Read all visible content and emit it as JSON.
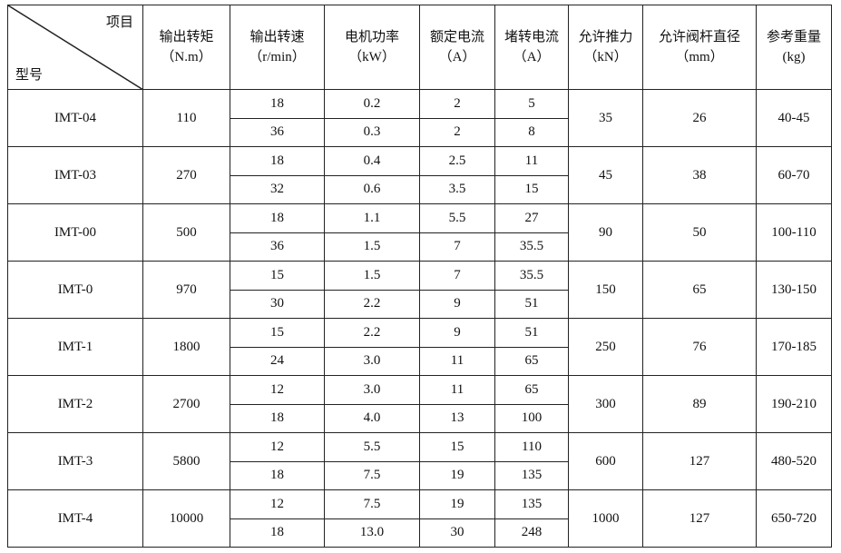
{
  "table": {
    "header": {
      "corner_top": "项目",
      "corner_bottom": "型号",
      "columns": [
        {
          "name": "输出转矩",
          "unit": "（N.m）"
        },
        {
          "name": "输出转速",
          "unit": "（r/min）"
        },
        {
          "name": "电机功率",
          "unit": "（kW）"
        },
        {
          "name": "额定电流",
          "unit": "（A）"
        },
        {
          "name": "堵转电流",
          "unit": "（A）"
        },
        {
          "name": "允许推力",
          "unit": "（kN）"
        },
        {
          "name": "允许阀杆直径",
          "unit": "（mm）"
        },
        {
          "name": "参考重量",
          "unit": "(kg)"
        }
      ]
    },
    "rows": [
      {
        "model": "IMT-04",
        "torque": "110",
        "speeds": [
          {
            "speed": "18",
            "power": "0.2",
            "rated": "2",
            "stall": "5"
          },
          {
            "speed": "36",
            "power": "0.3",
            "rated": "2",
            "stall": "8"
          }
        ],
        "thrust": "35",
        "stem": "26",
        "weight": "40-45"
      },
      {
        "model": "IMT-03",
        "torque": "270",
        "speeds": [
          {
            "speed": "18",
            "power": "0.4",
            "rated": "2.5",
            "stall": "11"
          },
          {
            "speed": "32",
            "power": "0.6",
            "rated": "3.5",
            "stall": "15"
          }
        ],
        "thrust": "45",
        "stem": "38",
        "weight": "60-70"
      },
      {
        "model": "IMT-00",
        "torque": "500",
        "speeds": [
          {
            "speed": "18",
            "power": "1.1",
            "rated": "5.5",
            "stall": "27"
          },
          {
            "speed": "36",
            "power": "1.5",
            "rated": "7",
            "stall": "35.5"
          }
        ],
        "thrust": "90",
        "stem": "50",
        "weight": "100-110"
      },
      {
        "model": "IMT-0",
        "torque": "970",
        "speeds": [
          {
            "speed": "15",
            "power": "1.5",
            "rated": "7",
            "stall": "35.5"
          },
          {
            "speed": "30",
            "power": "2.2",
            "rated": "9",
            "stall": "51"
          }
        ],
        "thrust": "150",
        "stem": "65",
        "weight": "130-150"
      },
      {
        "model": "IMT-1",
        "torque": "1800",
        "speeds": [
          {
            "speed": "15",
            "power": "2.2",
            "rated": "9",
            "stall": "51"
          },
          {
            "speed": "24",
            "power": "3.0",
            "rated": "11",
            "stall": "65"
          }
        ],
        "thrust": "250",
        "stem": "76",
        "weight": "170-185"
      },
      {
        "model": "IMT-2",
        "torque": "2700",
        "speeds": [
          {
            "speed": "12",
            "power": "3.0",
            "rated": "11",
            "stall": "65"
          },
          {
            "speed": "18",
            "power": "4.0",
            "rated": "13",
            "stall": "100"
          }
        ],
        "thrust": "300",
        "stem": "89",
        "weight": "190-210"
      },
      {
        "model": "IMT-3",
        "torque": "5800",
        "speeds": [
          {
            "speed": "12",
            "power": "5.5",
            "rated": "15",
            "stall": "110"
          },
          {
            "speed": "18",
            "power": "7.5",
            "rated": "19",
            "stall": "135"
          }
        ],
        "thrust": "600",
        "stem": "127",
        "weight": "480-520"
      },
      {
        "model": "IMT-4",
        "torque": "10000",
        "speeds": [
          {
            "speed": "12",
            "power": "7.5",
            "rated": "19",
            "stall": "135"
          },
          {
            "speed": "18",
            "power": "13.0",
            "rated": "30",
            "stall": "248"
          }
        ],
        "thrust": "1000",
        "stem": "127",
        "weight": "650-720"
      }
    ]
  }
}
